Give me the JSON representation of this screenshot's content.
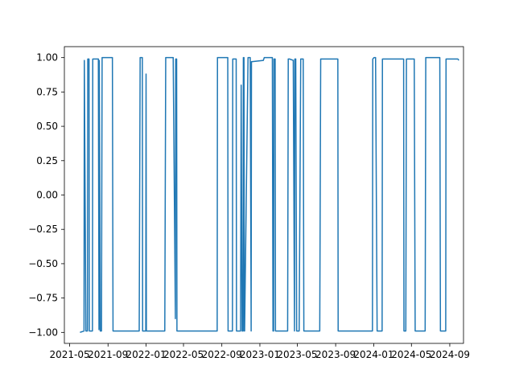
{
  "chart_data": {
    "type": "line",
    "title": "",
    "xlabel": "",
    "ylabel": "",
    "x_axis_type": "date",
    "xlim": [
      "2021-04-14",
      "2024-10-15"
    ],
    "ylim": [
      -1.08,
      1.08
    ],
    "x_ticks": [
      "2021-05",
      "2021-09",
      "2022-01",
      "2022-05",
      "2022-09",
      "2023-01",
      "2023-05",
      "2023-09",
      "2024-01",
      "2024-05",
      "2024-09"
    ],
    "y_ticks": [
      1.0,
      0.75,
      0.5,
      0.25,
      0.0,
      -0.25,
      -0.5,
      -0.75,
      -1.0
    ],
    "y_tick_labels": [
      "1.00",
      "0.75",
      "0.50",
      "0.25",
      "0.00",
      "−0.25",
      "−0.50",
      "−0.75",
      "−1.00"
    ],
    "grid": false,
    "legend": null,
    "series": [
      {
        "color": "#1f77b4",
        "x": [
          "2021-06-03",
          "2021-06-16",
          "2021-06-17",
          "2021-06-22",
          "2021-06-23",
          "2021-06-27",
          "2021-06-28",
          "2021-07-02",
          "2021-07-03",
          "2021-07-10",
          "2021-07-13",
          "2021-07-14",
          "2021-07-25",
          "2021-08-01",
          "2021-08-03",
          "2021-08-04",
          "2021-08-07",
          "2021-08-11",
          "2021-08-13",
          "2021-09-15",
          "2021-09-17",
          "2021-09-18",
          "2021-10-01",
          "2021-10-07",
          "2021-12-10",
          "2021-12-13",
          "2021-12-20",
          "2021-12-21",
          "2021-12-31",
          "2022-01-01",
          "2022-01-02",
          "2022-01-08",
          "2022-01-09",
          "2022-03-02",
          "2022-03-05",
          "2022-03-29",
          "2022-04-05",
          "2022-04-06",
          "2022-04-09",
          "2022-04-10",
          "2022-04-17",
          "2022-04-18",
          "2022-08-13",
          "2022-08-17",
          "2022-08-18",
          "2022-09-08",
          "2022-09-20",
          "2022-09-21",
          "2022-10-05",
          "2022-10-06",
          "2022-10-17",
          "2022-10-18",
          "2022-10-31",
          "2022-11-02",
          "2022-11-05",
          "2022-11-08",
          "2022-11-09",
          "2022-11-11",
          "2022-11-12",
          "2022-11-13",
          "2022-11-24",
          "2022-11-26",
          "2022-11-27",
          "2022-12-01",
          "2022-12-04",
          "2022-12-05",
          "2023-01-12",
          "2023-01-15",
          "2023-02-10",
          "2023-02-12",
          "2023-02-14",
          "2023-02-15",
          "2023-02-19",
          "2023-02-20",
          "2023-03-31",
          "2023-04-02",
          "2023-04-06",
          "2023-04-18",
          "2023-04-22",
          "2023-04-23",
          "2023-04-26",
          "2023-04-29",
          "2023-05-07",
          "2023-05-12",
          "2023-05-14",
          "2023-05-20",
          "2023-05-22",
          "2023-06-02",
          "2023-06-04",
          "2023-06-08",
          "2023-06-12",
          "2023-06-21",
          "2023-07-02",
          "2023-07-03",
          "2023-07-12",
          "2023-07-15",
          "2023-07-22",
          "2023-07-27",
          "2023-09-08",
          "2023-09-09",
          "2023-09-13",
          "2023-09-19",
          "2023-09-23",
          "2023-09-24",
          "2023-10-03",
          "2023-10-04",
          "2023-10-06",
          "2023-10-07",
          "2023-10-10",
          "2023-10-11",
          "2023-12-28",
          "2023-12-29",
          "2024-01-02",
          "2024-01-04",
          "2024-01-06",
          "2024-01-07",
          "2024-01-12",
          "2024-01-14",
          "2024-01-25",
          "2024-01-28",
          "2024-01-29",
          "2024-02-01",
          "2024-02-27",
          "2024-02-29",
          "2024-04-06",
          "2024-04-07",
          "2024-04-13",
          "2024-04-15",
          "2024-05-10",
          "2024-05-13",
          "2024-06-14",
          "2024-06-16",
          "2024-07-31",
          "2024-08-02",
          "2024-08-19",
          "2024-08-20",
          "2024-09-27",
          "2024-09-30"
        ],
        "y": [
          -1.0,
          -0.99,
          0.98,
          -0.99,
          -0.99,
          -0.99,
          0.99,
          0.99,
          -0.99,
          -0.99,
          -0.99,
          0.99,
          0.99,
          0.99,
          -0.98,
          0.98,
          -0.99,
          -0.99,
          1.0,
          1.0,
          -0.99,
          -0.99,
          -0.99,
          -0.99,
          -0.99,
          1.0,
          1.0,
          -0.99,
          -0.99,
          0.88,
          -0.99,
          -0.99,
          -0.99,
          -0.99,
          1.0,
          1.0,
          -0.9,
          0.99,
          0.99,
          -0.99,
          -0.99,
          -0.99,
          -0.99,
          -0.99,
          1.0,
          1.0,
          1.0,
          -0.99,
          -0.99,
          0.99,
          0.99,
          -0.99,
          -0.99,
          0.8,
          -0.99,
          -0.99,
          1.0,
          1.0,
          -0.99,
          -0.99,
          1.0,
          1.0,
          1.0,
          1.0,
          -0.99,
          0.97,
          0.98,
          1.0,
          1.0,
          -0.99,
          -0.99,
          0.99,
          0.99,
          -0.99,
          -0.99,
          0.99,
          0.99,
          0.98,
          -0.99,
          0.99,
          0.99,
          -0.99,
          -0.99,
          0.99,
          0.99,
          0.99,
          -0.99,
          -0.99,
          -0.99,
          -0.99,
          -0.99,
          -0.99,
          -0.99,
          -0.99,
          -0.99,
          0.99,
          0.99,
          0.99,
          0.99,
          -0.99,
          -0.99,
          -0.99,
          -0.99,
          -0.99,
          -0.99,
          -0.99,
          -0.99,
          -0.99,
          -0.99,
          -0.99,
          -0.99,
          0.99,
          1.0,
          1.0,
          1.0,
          1.0,
          -0.99,
          -0.99,
          -0.99,
          -0.99,
          0.99,
          0.99,
          0.99,
          0.99,
          0.99,
          -0.99,
          -0.99,
          0.99,
          0.99,
          -0.99,
          -0.99,
          1.0,
          1.0,
          -0.99,
          -0.99,
          0.99,
          0.99,
          0.98
        ]
      }
    ]
  }
}
